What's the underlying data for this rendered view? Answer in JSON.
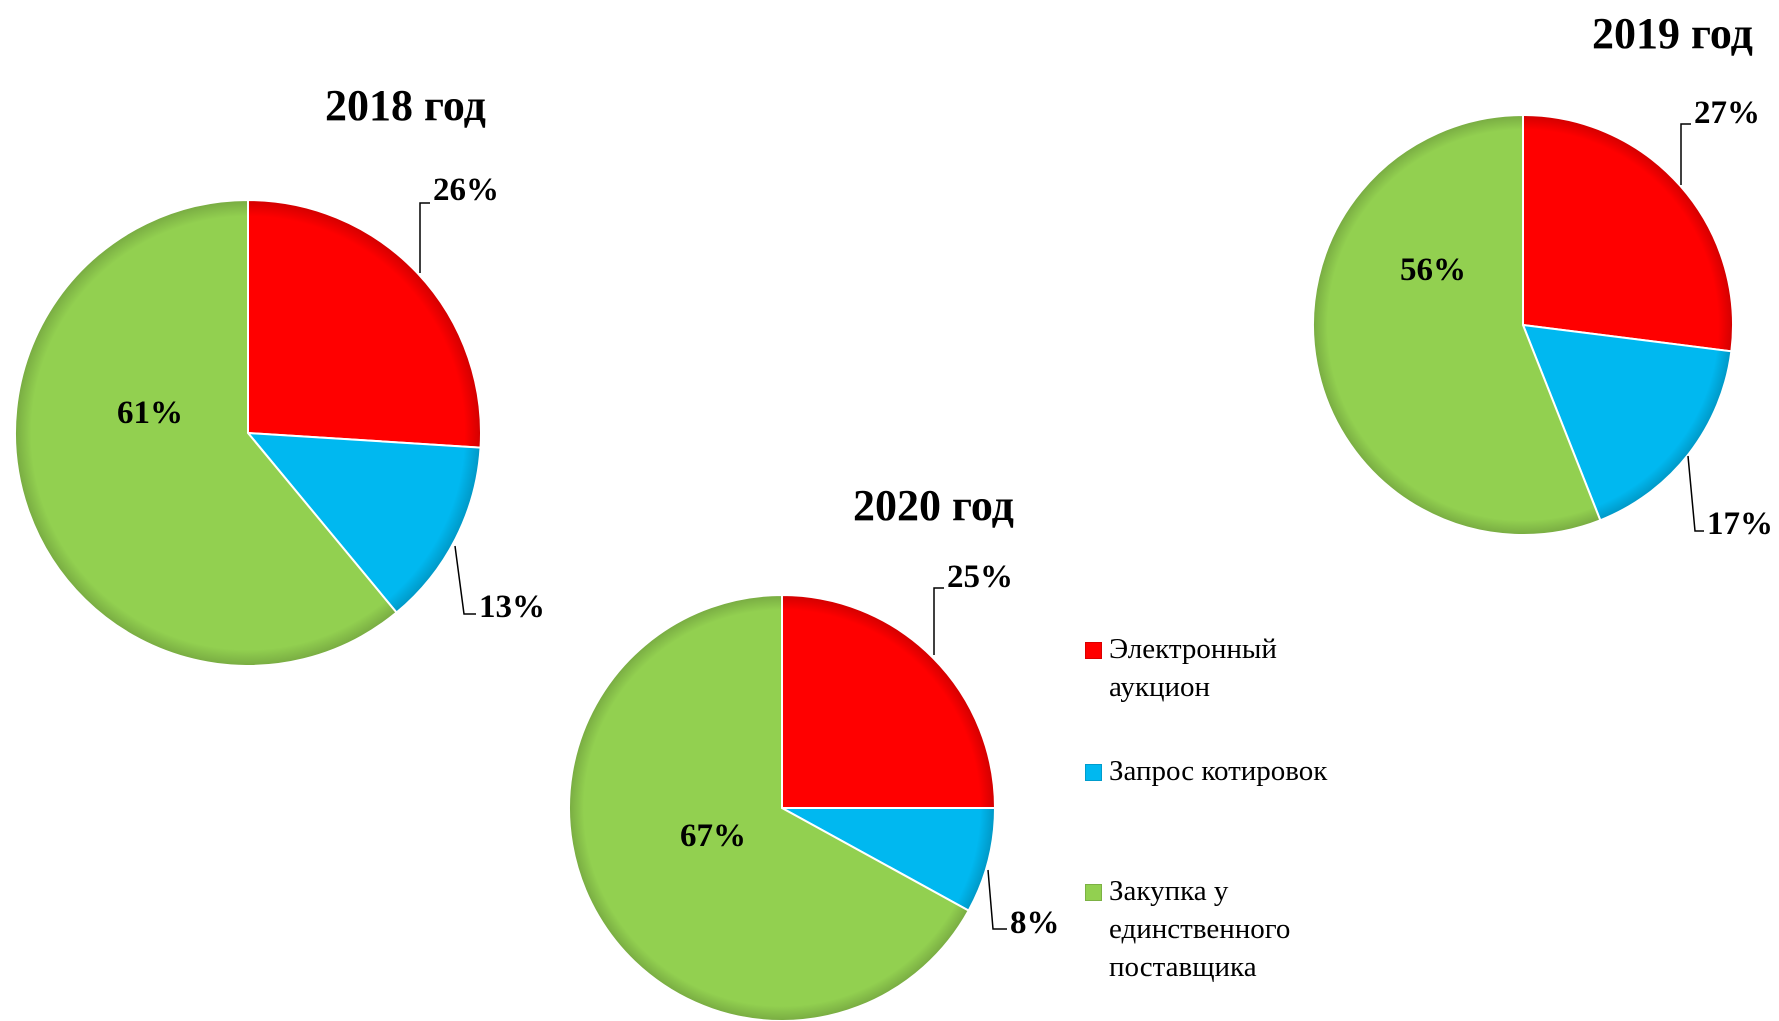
{
  "chart_data": [
    {
      "type": "pie",
      "title": "2018 год",
      "categories": [
        "Электронный аукцион",
        "Запрос котировок",
        "Закупка у единственного поставщика"
      ],
      "values": [
        26,
        13,
        61
      ],
      "labels": [
        "26%",
        "13%",
        "61%"
      ],
      "colors": [
        "#ff0000",
        "#00b8f0",
        "#92d050"
      ]
    },
    {
      "type": "pie",
      "title": "2019 год",
      "categories": [
        "Электронный аукцион",
        "Запрос котировок",
        "Закупка у единственного поставщика"
      ],
      "values": [
        27,
        17,
        56
      ],
      "labels": [
        "27%",
        "17%",
        "56%"
      ],
      "colors": [
        "#ff0000",
        "#00b8f0",
        "#92d050"
      ]
    },
    {
      "type": "pie",
      "title": "2020 год",
      "categories": [
        "Электронный аукцион",
        "Запрос котировок",
        "Закупка у единственного поставщика"
      ],
      "values": [
        25,
        8,
        67
      ],
      "labels": [
        "25%",
        "8%",
        "67%"
      ],
      "colors": [
        "#ff0000",
        "#00b8f0",
        "#92d050"
      ]
    }
  ],
  "legend": {
    "placement": "right",
    "items": [
      {
        "label": "Электронный аукцион",
        "color": "#ff0000"
      },
      {
        "label": "Запрос котировок",
        "color": "#00b8f0"
      },
      {
        "label": "Закупка у единственного поставщика",
        "color": "#92d050"
      }
    ]
  }
}
